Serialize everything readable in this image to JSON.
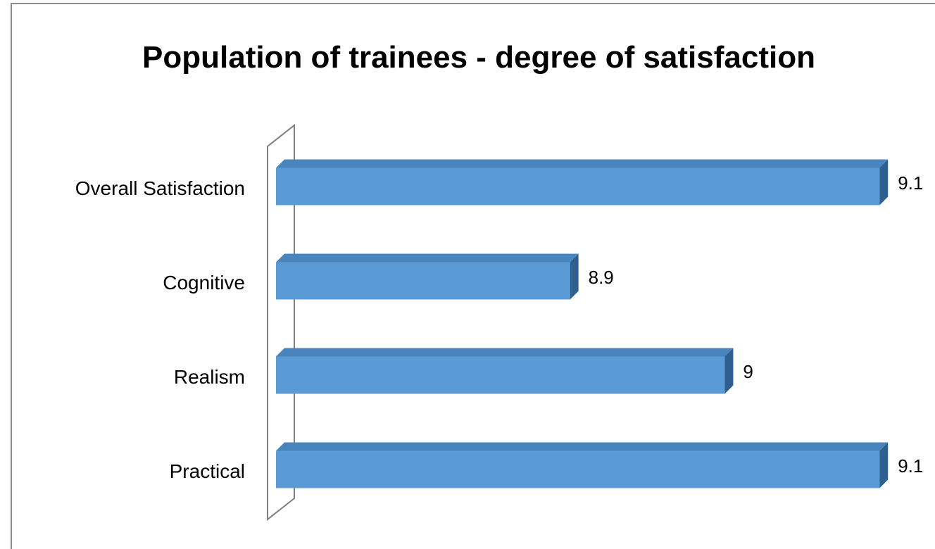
{
  "chart_data": {
    "type": "bar",
    "orientation": "horizontal",
    "title": "Population of trainees - degree of satisfaction",
    "categories": [
      "Overall Satisfaction",
      "Cognitive",
      "Realism",
      "Practical"
    ],
    "values": [
      9.1,
      8.9,
      9.0,
      9.1
    ],
    "data_labels": [
      "9.1",
      "8.9",
      "9",
      "9.1"
    ],
    "grid": false,
    "legend": "none",
    "style": "3d",
    "colors": {
      "bar_front": "#5b9bd5",
      "bar_top": "#4a84bd",
      "bar_side": "#2f5f8f",
      "frame": "#808080",
      "text": "#000000"
    }
  }
}
